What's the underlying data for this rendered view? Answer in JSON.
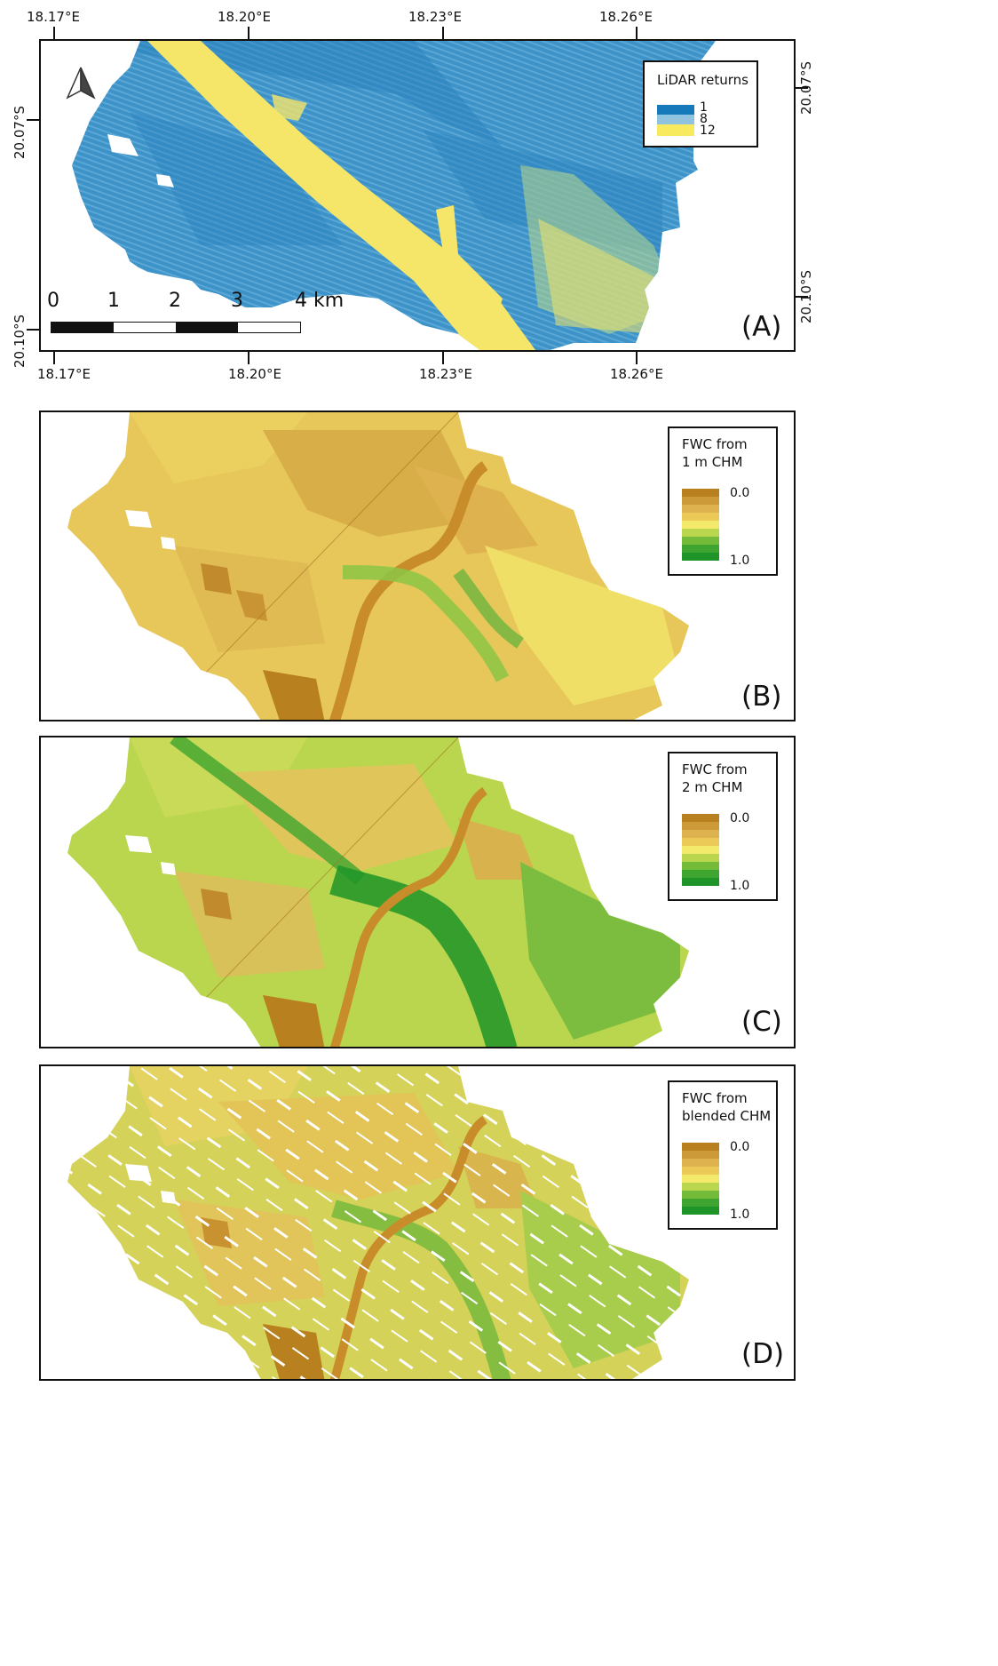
{
  "panels": {
    "a": {
      "letter": "(A)",
      "x_ticks": [
        "18.17°E",
        "18.20°E",
        "18.23°E",
        "18.26°E"
      ],
      "y_ticks": [
        "20.07°S",
        "20.10°S"
      ],
      "legend": {
        "title": "LiDAR returns",
        "entries": [
          {
            "label": "1",
            "color": "#1679b9"
          },
          {
            "label": "8",
            "color": "#8fc3e0"
          },
          {
            "label": "12",
            "color": "#f7ea5f"
          }
        ]
      },
      "scale_bar": {
        "labels": [
          "0",
          "1",
          "2",
          "3",
          "4 km"
        ]
      },
      "colors": {
        "base": "#3d93c8",
        "dark": "#1f77b4",
        "light": "#7ab6dc",
        "yellow": "#f5e66a"
      }
    },
    "b": {
      "letter": "(B)",
      "legend": {
        "title_line1": "FWC from",
        "title_line2": "1 m CHM",
        "min_label": "0.0",
        "max_label": "1.0"
      }
    },
    "c": {
      "letter": "(C)",
      "legend": {
        "title_line1": "FWC from",
        "title_line2": "2 m CHM",
        "min_label": "0.0",
        "max_label": "1.0"
      }
    },
    "d": {
      "letter": "(D)",
      "legend": {
        "title_line1": "FWC from",
        "title_line2": "blended CHM",
        "min_label": "0.0",
        "max_label": "1.0"
      }
    }
  },
  "fwc_palette": [
    "#b8801f",
    "#cc9a38",
    "#deb24e",
    "#ecca58",
    "#f3e96a",
    "#b9d64e",
    "#74bb3a",
    "#3ea530",
    "#1f9428"
  ]
}
